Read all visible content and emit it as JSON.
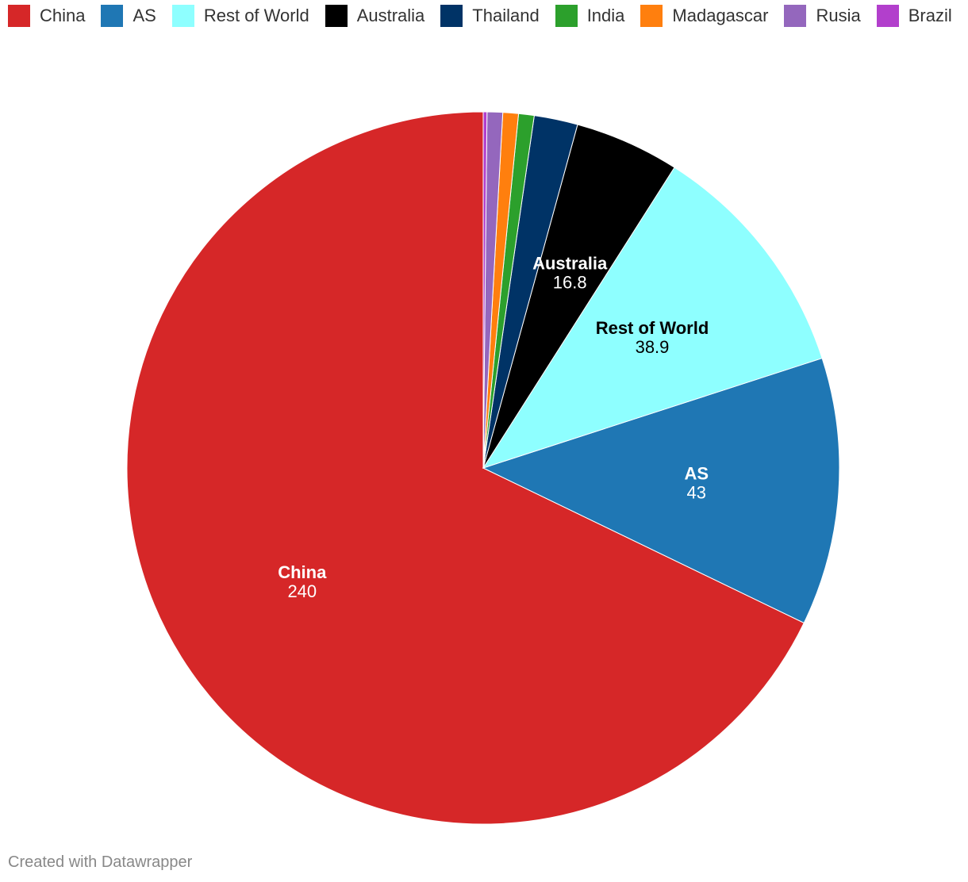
{
  "chart_data": {
    "type": "pie",
    "title": "",
    "legend_position": "top-left",
    "slices": [
      {
        "name": "China",
        "value": 240,
        "color": "#d62728",
        "label_color": "#ffffff",
        "show_label": true
      },
      {
        "name": "AS",
        "value": 43,
        "color": "#1f77b4",
        "label_color": "#ffffff",
        "show_label": true
      },
      {
        "name": "Rest of World",
        "value": 38.9,
        "color": "#8effff",
        "label_color": "#000000",
        "show_label": true
      },
      {
        "name": "Australia",
        "value": 16.8,
        "color": "#000000",
        "label_color": "#ffffff",
        "show_label": true
      },
      {
        "name": "Thailand",
        "value": 7,
        "color": "#003366",
        "label_color": "#ffffff",
        "show_label": false
      },
      {
        "name": "India",
        "value": 2.5,
        "color": "#2ca02c",
        "label_color": "#ffffff",
        "show_label": false
      },
      {
        "name": "Madagascar",
        "value": 2.5,
        "color": "#ff7f0e",
        "label_color": "#ffffff",
        "show_label": false
      },
      {
        "name": "Rusia",
        "value": 2.5,
        "color": "#9467bd",
        "label_color": "#ffffff",
        "show_label": false
      },
      {
        "name": "Brazil",
        "value": 0.6,
        "color": "#b23fcc",
        "label_color": "#ffffff",
        "show_label": false
      }
    ]
  },
  "footer": {
    "credit": "Created with Datawrapper"
  }
}
